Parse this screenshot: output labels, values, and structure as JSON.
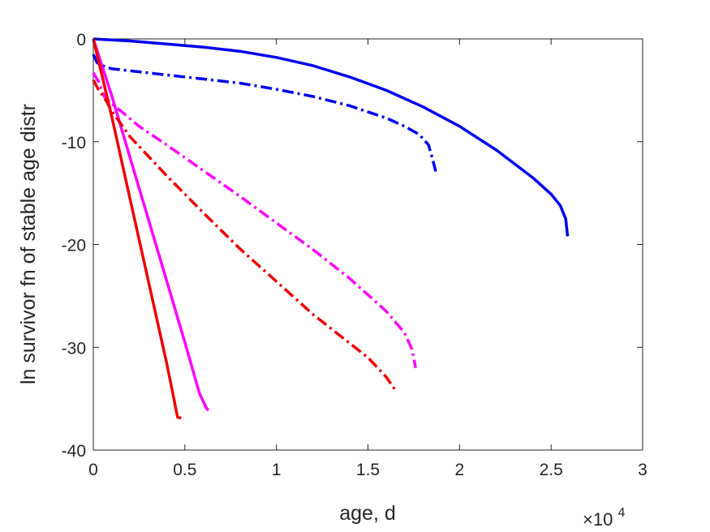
{
  "chart_data": {
    "type": "line",
    "title": "",
    "xlabel": "age, d",
    "ylabel": "ln survivor fn of stable age distr",
    "x_exponent_label": "×10",
    "x_exponent_power": "4",
    "xlim": [
      0,
      30000
    ],
    "ylim": [
      -40,
      0
    ],
    "xticks": [
      0,
      5000,
      10000,
      15000,
      20000,
      25000,
      30000
    ],
    "xtick_labels": [
      "0",
      "0.5",
      "1",
      "1.5",
      "2",
      "2.5",
      "3"
    ],
    "yticks": [
      0,
      -10,
      -20,
      -30,
      -40
    ],
    "ytick_labels": [
      "0",
      "-10",
      "-20",
      "-30",
      "-40"
    ],
    "grid": false,
    "legend": false,
    "series": [
      {
        "color": "#0000ee",
        "style": "solid",
        "x": [
          0,
          1000,
          2000,
          4000,
          6000,
          8000,
          10000,
          12000,
          14000,
          16000,
          18000,
          20000,
          22000,
          24000,
          25000,
          25500,
          25800,
          25900
        ],
        "y": [
          0,
          -0.1,
          -0.2,
          -0.5,
          -0.8,
          -1.2,
          -1.8,
          -2.6,
          -3.7,
          -5.0,
          -6.6,
          -8.5,
          -10.8,
          -13.5,
          -15.1,
          -16.2,
          -17.5,
          -19.2
        ]
      },
      {
        "color": "#0000ee",
        "style": "dashdot",
        "x": [
          0,
          200,
          500,
          1000,
          2000,
          4000,
          6000,
          8000,
          10000,
          12000,
          14000,
          16000,
          17000,
          17800,
          18300,
          18500,
          18700
        ],
        "y": [
          -1.5,
          -2.3,
          -2.6,
          -2.9,
          -3.1,
          -3.5,
          -3.9,
          -4.3,
          -4.9,
          -5.6,
          -6.5,
          -7.7,
          -8.5,
          -9.3,
          -10.3,
          -11.5,
          -12.9
        ]
      },
      {
        "color": "#ff00ff",
        "style": "solid",
        "x": [
          0,
          1000,
          2000,
          3000,
          4000,
          5000,
          5800,
          6200,
          6300
        ],
        "y": [
          0,
          -5.5,
          -11.5,
          -17.5,
          -23.5,
          -29.5,
          -34.5,
          -36.0,
          -36.1
        ]
      },
      {
        "color": "#ff00ff",
        "style": "dashdot",
        "x": [
          0,
          300,
          600,
          1000,
          1500,
          2500,
          4000,
          6000,
          8000,
          10000,
          12000,
          14000,
          16000,
          17000,
          17400,
          17600
        ],
        "y": [
          -3.3,
          -4.2,
          -5.6,
          -6.3,
          -7.0,
          -8.5,
          -10.3,
          -12.8,
          -15.3,
          -17.9,
          -20.5,
          -23.3,
          -26.5,
          -28.6,
          -30.2,
          -32.0
        ]
      },
      {
        "color": "#ee0000",
        "style": "solid",
        "x": [
          0,
          1000,
          2000,
          3000,
          4000,
          4400,
          4600,
          4800
        ],
        "y": [
          0,
          -7.5,
          -15.5,
          -23.5,
          -31.5,
          -35.0,
          -36.8,
          -36.9
        ]
      },
      {
        "color": "#ee0000",
        "style": "dashdot",
        "x": [
          0,
          300,
          600,
          1000,
          2000,
          4000,
          6000,
          8000,
          10000,
          12000,
          14000,
          15000,
          16000,
          16500
        ],
        "y": [
          -4.0,
          -5.0,
          -5.7,
          -7.0,
          -9.5,
          -13.3,
          -16.9,
          -20.4,
          -23.6,
          -26.8,
          -29.6,
          -31.0,
          -32.9,
          -34.2
        ]
      }
    ]
  }
}
